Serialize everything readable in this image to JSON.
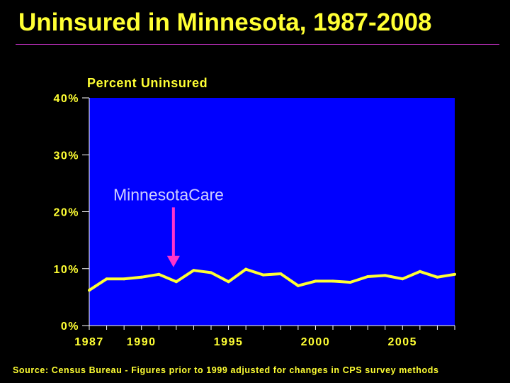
{
  "title": "Uninsured in Minnesota, 1987-2008",
  "source": "Source: Census Bureau - Figures prior to 1999 adjusted for changes in CPS survey methods",
  "colors": {
    "background": "#000000",
    "plot_area": "#0000ff",
    "line": "#ffff33",
    "arrow": "#ff33cc",
    "text": "#ffff33"
  },
  "chart_data": {
    "type": "line",
    "title": "Percent Uninsured",
    "xlabel": "",
    "ylabel": "",
    "xlim": [
      1987,
      2008
    ],
    "ylim": [
      0,
      40
    ],
    "grid": false,
    "legend": "none",
    "x_ticks": [
      1987,
      1988,
      1989,
      1990,
      1991,
      1992,
      1993,
      1994,
      1995,
      1996,
      1997,
      1998,
      1999,
      2000,
      2001,
      2002,
      2003,
      2004,
      2005,
      2006,
      2007,
      2008
    ],
    "x_tick_labels": [
      {
        "x": 1987,
        "label": "1987"
      },
      {
        "x": 1990,
        "label": "1990"
      },
      {
        "x": 1995,
        "label": "1995"
      },
      {
        "x": 2000,
        "label": "2000"
      },
      {
        "x": 2005,
        "label": "2005"
      }
    ],
    "y_ticks": [
      {
        "y": 0,
        "label": "0%"
      },
      {
        "y": 10,
        "label": "10%"
      },
      {
        "y": 20,
        "label": "20%"
      },
      {
        "y": 30,
        "label": "30%"
      },
      {
        "y": 40,
        "label": "40%"
      }
    ],
    "series": [
      {
        "x": [
          1987,
          1988,
          1989,
          1990,
          1991,
          1992,
          1993,
          1994,
          1995,
          1996,
          1997,
          1998,
          1999,
          2000,
          2001,
          2002,
          2003,
          2004,
          2005,
          2006,
          2007,
          2008
        ],
        "values": [
          6.2,
          8.2,
          8.2,
          8.5,
          9.0,
          7.7,
          9.7,
          9.3,
          7.7,
          9.9,
          8.9,
          9.1,
          7.0,
          7.8,
          7.8,
          7.6,
          8.6,
          8.8,
          8.2,
          9.5,
          8.5,
          9.0
        ]
      }
    ],
    "annotations": [
      {
        "text": "MinnesotaCare",
        "x": 1992,
        "y": 23,
        "arrow_to": {
          "x": 1992,
          "y": 10.5
        }
      }
    ]
  }
}
